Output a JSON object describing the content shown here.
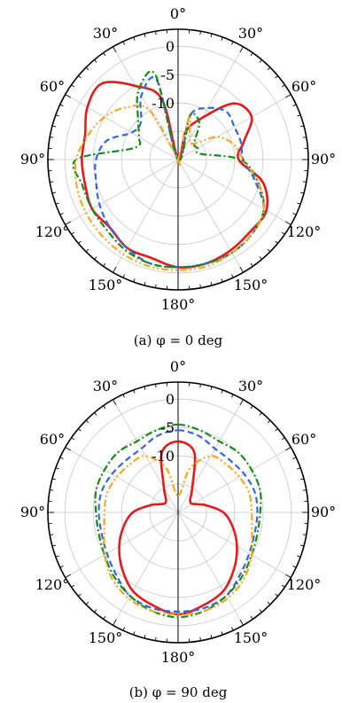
{
  "chart_data": [
    {
      "type": "polar",
      "caption": "(a) φ = 0 deg",
      "angle_unit": "deg",
      "angle_ticks": [
        "0°",
        "30°",
        "60°",
        "90°",
        "120°",
        "150°",
        "180°",
        "150°",
        "120°",
        "90°",
        "60°",
        "30°"
      ],
      "radial_ticks": [
        "0",
        "-5",
        "-10"
      ],
      "rlim": [
        -20,
        3
      ],
      "grid": true,
      "theta": [
        0,
        15,
        30,
        45,
        60,
        75,
        90,
        105,
        120,
        135,
        150,
        165,
        180,
        195,
        210,
        225,
        240,
        255,
        270,
        285,
        300,
        315,
        330,
        345
      ],
      "series": [
        {
          "color": "#e41a1c",
          "style": "solid",
          "values": [
            -20,
            -15,
            -11.5,
            -6,
            -5,
            -8,
            -9.3,
            -4.5,
            -2,
            -2,
            -1.5,
            -1,
            -1,
            -2,
            -2,
            -3,
            -2.5,
            -3,
            -3,
            -3,
            -1.5,
            -1,
            -5,
            -9
          ]
        },
        {
          "color": "#3366dd",
          "style": "dashed",
          "values": [
            -20,
            -12,
            -9.5,
            -8,
            -8.5,
            -8.5,
            -8.5,
            -6,
            -2.5,
            -1.5,
            -1,
            -1,
            -1,
            -1,
            -2,
            -3,
            -4,
            -5,
            -5.5,
            -7,
            -10.5,
            -10.7,
            -7,
            -5.5
          ]
        },
        {
          "color": "#1a8a1a",
          "style": "dashdot",
          "values": [
            -20,
            -12,
            -12.5,
            -16,
            -16,
            -16,
            -9,
            -5.5,
            -2.5,
            -1.5,
            -1,
            -1,
            -1,
            -1,
            -1.5,
            -2.3,
            -2.5,
            -2.5,
            -2,
            -12,
            -12,
            -10,
            -6,
            -4.5
          ]
        },
        {
          "color": "#f5a623",
          "style": "dashdotdot",
          "values": [
            -20,
            -12,
            -16,
            -16,
            -12,
            -9.8,
            -8.5,
            -5.5,
            -2.5,
            -1.5,
            -1,
            -0.5,
            -0.5,
            -0.5,
            -0.7,
            -1,
            -1.2,
            -1.5,
            -2,
            -3.5,
            -5,
            -7,
            -10,
            -20
          ]
        }
      ]
    },
    {
      "type": "polar",
      "caption": "(b) φ = 90 deg",
      "angle_unit": "deg",
      "angle_ticks": [
        "0°",
        "30°",
        "60°",
        "90°",
        "120°",
        "150°",
        "180°",
        "150°",
        "120°",
        "90°",
        "60°",
        "30°"
      ],
      "radial_ticks": [
        "0",
        "-5",
        "-10"
      ],
      "rlim": [
        -20,
        3
      ],
      "grid": true,
      "theta": [
        0,
        15,
        30,
        45,
        60,
        75,
        90,
        105,
        120,
        135,
        150,
        165,
        180,
        195,
        210,
        225,
        240,
        255,
        270,
        285,
        300,
        315,
        330,
        345
      ],
      "series": [
        {
          "color": "#e41a1c",
          "style": "solid",
          "values": [
            -7.5,
            -9,
            -15,
            -17,
            -17,
            -15,
            -12,
            -10,
            -8,
            -6,
            -4,
            -3,
            -2,
            -3,
            -4,
            -6,
            -8,
            -10,
            -12,
            -15,
            -17,
            -17,
            -15,
            -9
          ]
        },
        {
          "color": "#3366dd",
          "style": "dashed",
          "values": [
            -5.5,
            -6,
            -7,
            -7,
            -6.5,
            -6,
            -6,
            -6,
            -5.5,
            -4.5,
            -3,
            -2.5,
            -2.5,
            -2.5,
            -3,
            -4.5,
            -5.5,
            -6,
            -6,
            -6,
            -6.5,
            -7,
            -7,
            -6
          ]
        },
        {
          "color": "#1a8a1a",
          "style": "dashdot",
          "values": [
            -4.5,
            -5,
            -5.5,
            -5,
            -5,
            -5,
            -5.5,
            -5.5,
            -5,
            -4,
            -3,
            -2,
            -1.5,
            -2,
            -3,
            -4,
            -5,
            -5.5,
            -5.5,
            -5,
            -5,
            -5,
            -5.5,
            -5
          ]
        },
        {
          "color": "#f5a623",
          "style": "dashdotdot",
          "values": [
            -17,
            -12,
            -8.5,
            -8,
            -7.5,
            -7,
            -7,
            -6.5,
            -5,
            -3.5,
            -2.5,
            -2,
            -2,
            -2,
            -2.5,
            -3.5,
            -5,
            -6.5,
            -7,
            -7,
            -7.5,
            -8,
            -8.5,
            -12
          ]
        }
      ]
    }
  ]
}
